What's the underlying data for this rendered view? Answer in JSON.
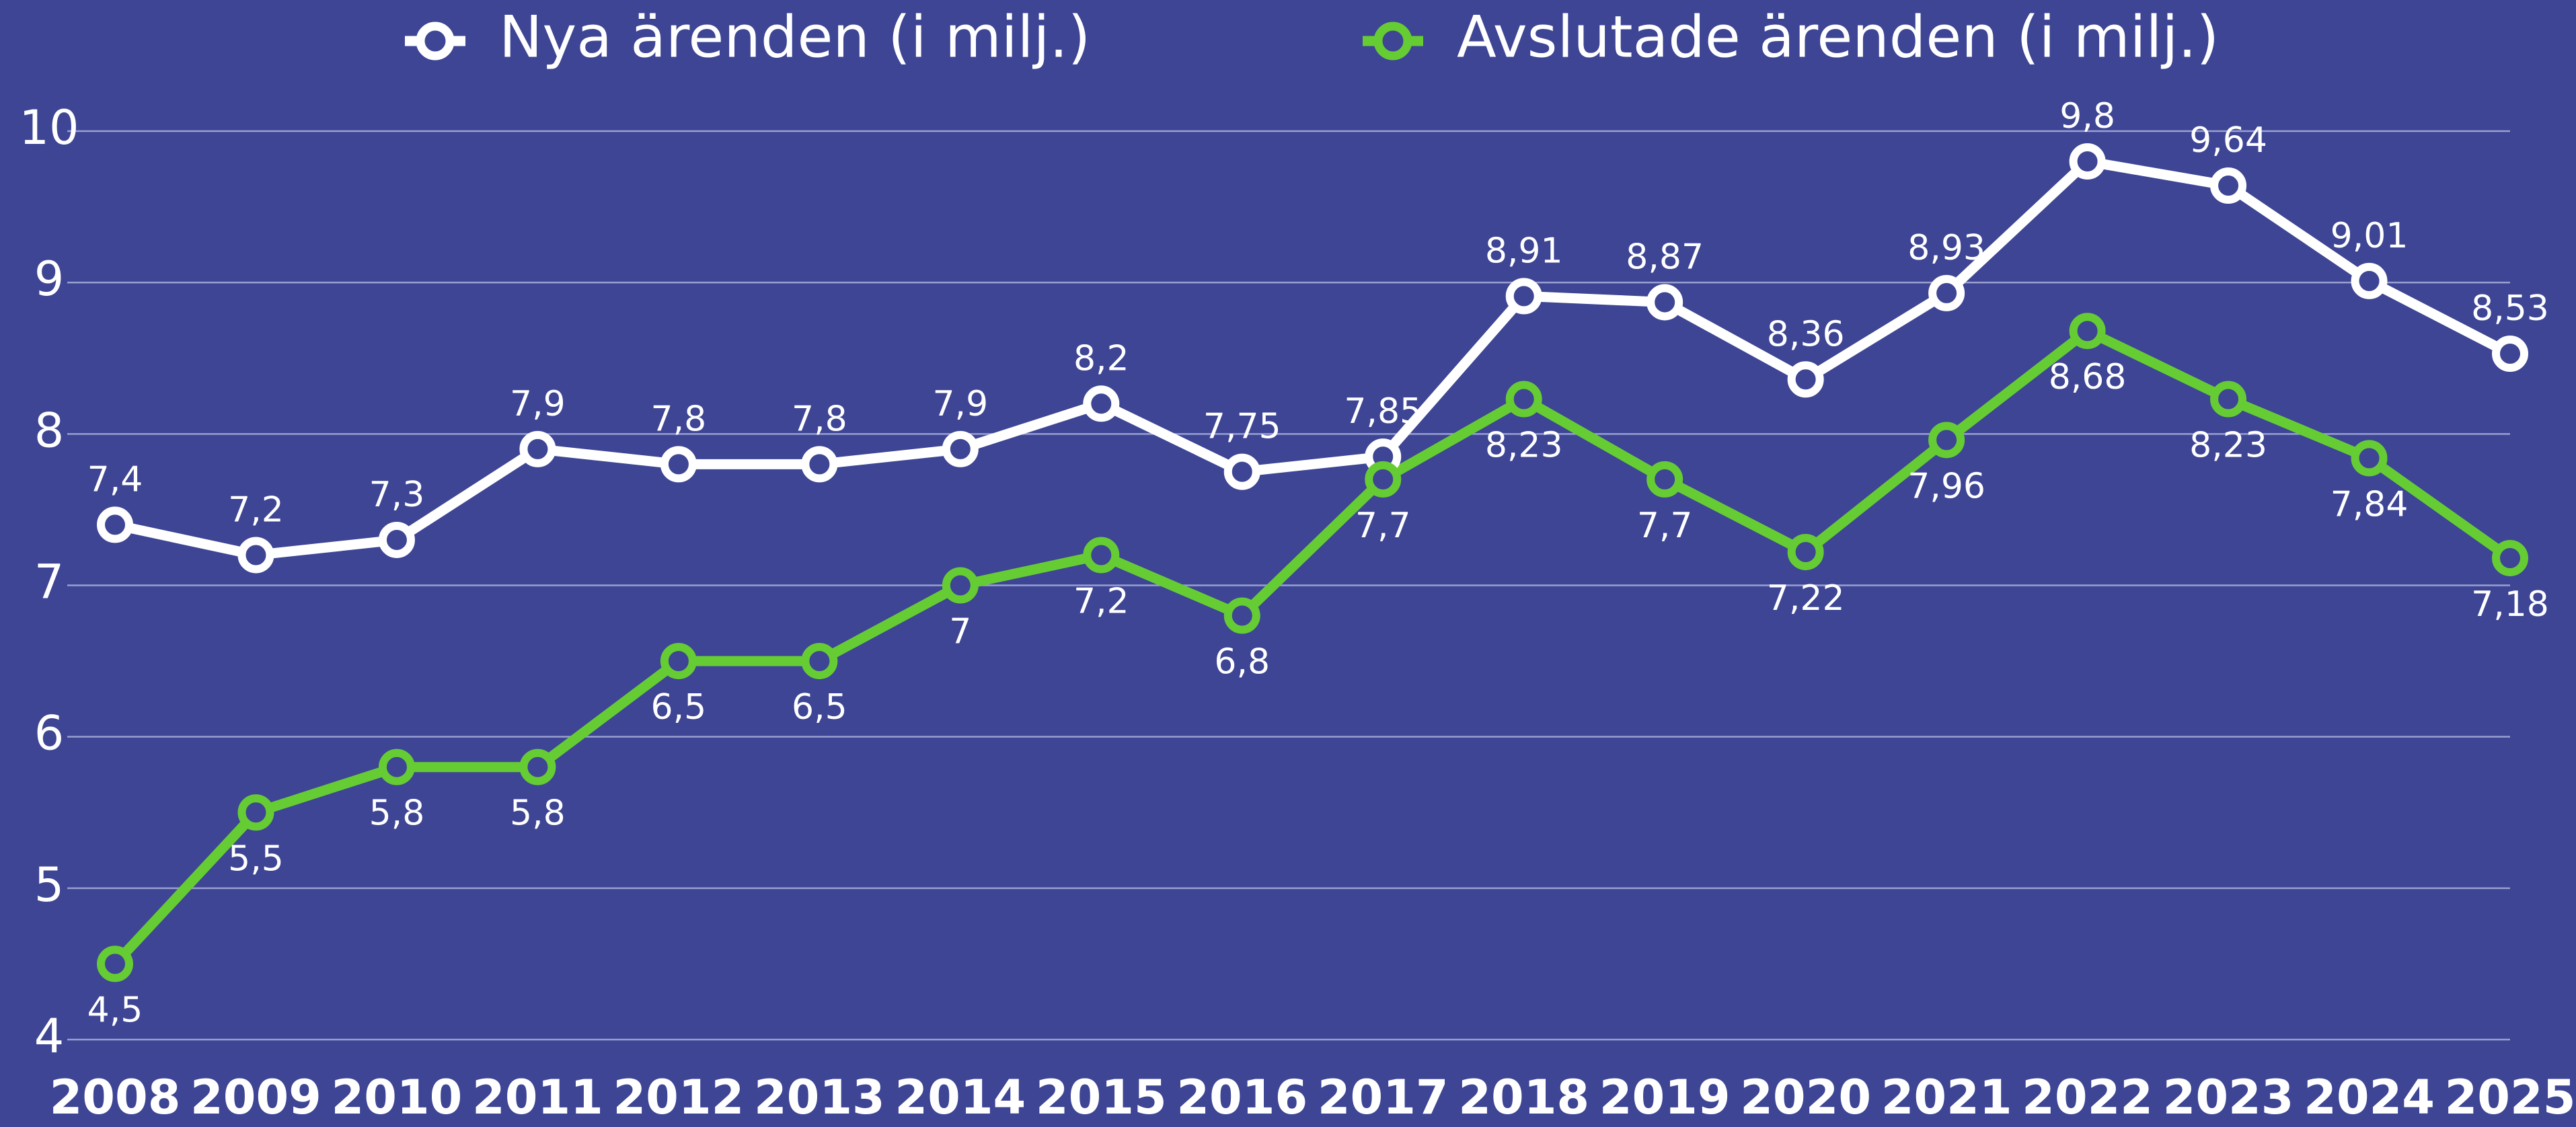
{
  "chart_data": {
    "type": "line",
    "categories": [
      "2008",
      "2009",
      "2010",
      "2011",
      "2012",
      "2013",
      "2014",
      "2015",
      "2016",
      "2017",
      "2018",
      "2019",
      "2020",
      "2021",
      "2022",
      "2023",
      "2024",
      "2025"
    ],
    "series": [
      {
        "name": "Nya ärenden (i milj.)",
        "color": "#ffffff",
        "values": [
          7.4,
          7.2,
          7.3,
          7.9,
          7.8,
          7.8,
          7.9,
          8.2,
          7.75,
          7.85,
          8.91,
          8.87,
          8.36,
          8.93,
          9.8,
          9.64,
          9.01,
          8.53
        ],
        "value_labels": [
          "7,4",
          "7,2",
          "7,3",
          "7,9",
          "7,8",
          "7,8",
          "7,9",
          "8,2",
          "7,75",
          "7,85",
          "8,91",
          "8,87",
          "8,36",
          "8,93",
          "9,8",
          "9,64",
          "9,01",
          "8,53"
        ]
      },
      {
        "name": "Avslutade ärenden (i milj.)",
        "color": "#66cc33",
        "values": [
          4.5,
          5.5,
          5.8,
          5.8,
          6.5,
          6.5,
          7,
          7.2,
          6.8,
          7.7,
          8.23,
          7.7,
          7.22,
          7.96,
          8.68,
          8.23,
          7.84,
          7.18
        ],
        "value_labels": [
          "4,5",
          "5,5",
          "5,8",
          "5,8",
          "6,5",
          "6,5",
          "7",
          "7,2",
          "6,8",
          "7,7",
          "8,23",
          "7,7",
          "7,22",
          "7,96",
          "8,68",
          "8,23",
          "7,84",
          "7,18"
        ]
      }
    ],
    "ylim": [
      4,
      10
    ],
    "yticks": [
      4,
      5,
      6,
      7,
      8,
      9,
      10
    ],
    "grid": true,
    "legend": "top"
  }
}
